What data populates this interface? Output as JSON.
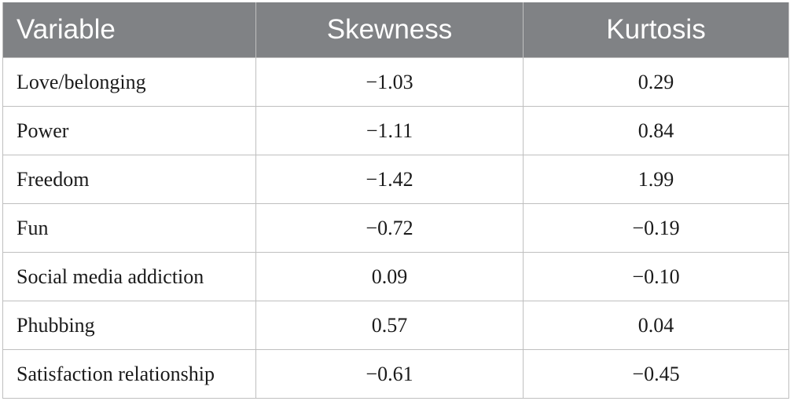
{
  "table": {
    "headers": [
      "Variable",
      "Skewness",
      "Kurtosis"
    ],
    "rows": [
      {
        "variable": "Love/belonging",
        "skewness": "−1.03",
        "kurtosis": "0.29"
      },
      {
        "variable": "Power",
        "skewness": "−1.11",
        "kurtosis": "0.84"
      },
      {
        "variable": "Freedom",
        "skewness": "−1.42",
        "kurtosis": "1.99"
      },
      {
        "variable": "Fun",
        "skewness": "−0.72",
        "kurtosis": "−0.19"
      },
      {
        "variable": "Social media addiction",
        "skewness": "0.09",
        "kurtosis": "−0.10"
      },
      {
        "variable": "Phubbing",
        "skewness": "0.57",
        "kurtosis": "0.04"
      },
      {
        "variable": "Satisfaction relationship",
        "skewness": "−0.61",
        "kurtosis": "−0.45"
      }
    ]
  },
  "colors": {
    "header_background": "#808285",
    "header_text": "#ffffff",
    "grid_lines": "#bfbfbf",
    "body_text": "#1a1a1a"
  }
}
